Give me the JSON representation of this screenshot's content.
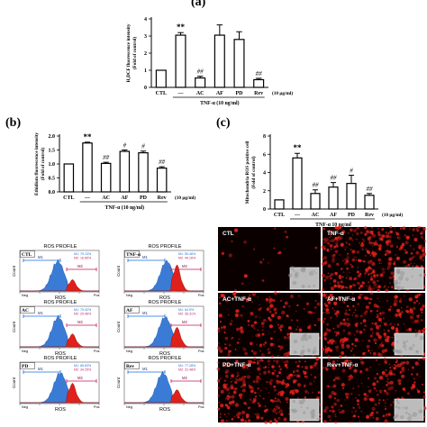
{
  "panels": {
    "a": {
      "letter": "(a)"
    },
    "b": {
      "letter": "(b)"
    },
    "c": {
      "letter": "(c)"
    }
  },
  "chart_data": [
    {
      "id": "a",
      "type": "bar",
      "categories": [
        "CTL",
        "—",
        "AC",
        "AF",
        "PD",
        "Rev"
      ],
      "values": [
        1.0,
        3.05,
        0.55,
        3.05,
        2.8,
        0.45
      ],
      "errors": [
        0.0,
        0.15,
        0.1,
        0.6,
        0.45,
        0.08
      ],
      "significance": [
        "",
        "**",
        "##",
        "",
        "",
        "##"
      ],
      "ylabel": "H2DCF fluorescence intensity (Fold of control)",
      "ylabel_line1": "H₂DCF fluorescence intensity",
      "ylabel_line2": "(Fold of control)",
      "ylim": [
        0,
        4
      ],
      "yticks": [
        "0",
        "1",
        "2",
        "3",
        "4"
      ],
      "treatment_label": "TNF-α (10 ng/ml)",
      "dose_label": "(10 μg/ml)"
    },
    {
      "id": "b",
      "type": "bar",
      "categories": [
        "CTL",
        "—",
        "AC",
        "AF",
        "PD",
        "Rev"
      ],
      "values": [
        1.0,
        1.75,
        1.02,
        1.45,
        1.4,
        0.85
      ],
      "errors": [
        0.0,
        0.03,
        0.04,
        0.05,
        0.06,
        0.05
      ],
      "significance": [
        "",
        "**",
        "##",
        "#",
        "#",
        "##"
      ],
      "ylabel": "Ethidium fluorescence intensity (Fold of control)",
      "ylabel_line1": "Ethidium fluorescence intensity",
      "ylabel_line2": "(Fold of control)",
      "ylim": [
        0.0,
        2.0
      ],
      "yticks": [
        "0.0",
        "0.5",
        "1.0",
        "1.5",
        "2.0"
      ],
      "treatment_label": "TNF-α (10 ng/ml)",
      "dose_label": "(10 μg/ml)"
    },
    {
      "id": "c",
      "type": "bar",
      "categories": [
        "CTL",
        "—",
        "AC",
        "AF",
        "PD",
        "Rev"
      ],
      "values": [
        1.0,
        5.6,
        1.7,
        2.4,
        2.8,
        1.5
      ],
      "errors": [
        0.0,
        0.5,
        0.4,
        0.5,
        0.9,
        0.2
      ],
      "significance": [
        "",
        "**",
        "##",
        "##",
        "#",
        "##"
      ],
      "ylabel": "Mitochondria ROS positive cell (Fold of control)",
      "ylabel_line1": "Mitochondria ROS positive cell",
      "ylabel_line2": "(Fold of control)",
      "ylim": [
        0,
        8
      ],
      "yticks": [
        "0",
        "2",
        "4",
        "6",
        "8"
      ],
      "treatment_label": "TNF-α 10 ng/ml",
      "dose_label": "(10 μg/ml)"
    }
  ],
  "flow": {
    "title": "ROS PROFILE",
    "xlabel": "ROS",
    "ylabel": "Count",
    "neg": "Neg",
    "pos": "Pos",
    "m1": "M1",
    "m2": "M2",
    "panels": [
      {
        "name": "CTL",
        "m1_pct": "M1: 79.13%",
        "m2_pct": "M2: 16.85%",
        "shift": 0.0,
        "red": 0.35
      },
      {
        "name": "TNF-α",
        "m1_pct": "M1: 55.46%",
        "m2_pct": "M2: 44.16%",
        "shift": 0.55,
        "red": 0.8
      },
      {
        "name": "AC",
        "m1_pct": "M1: 79.42%",
        "m2_pct": "M2: 20.46%",
        "shift": 0.05,
        "red": 0.4
      },
      {
        "name": "AF",
        "m1_pct": "M1: 64.5%",
        "m2_pct": "M2: 35.31%",
        "shift": 0.35,
        "red": 0.6
      },
      {
        "name": "PD",
        "m1_pct": "M1: 65.63%",
        "m2_pct": "M2: 34.25%",
        "shift": 0.3,
        "red": 0.6
      },
      {
        "name": "Rev",
        "m1_pct": "M1: 77.28%",
        "m2_pct": "M2: 22.48%",
        "shift": 0.08,
        "red": 0.4
      }
    ]
  },
  "fluor": {
    "panels": [
      {
        "label": "CTL",
        "intensity": 0.05
      },
      {
        "label": "TNF-α",
        "intensity": 0.95
      },
      {
        "label": "AC+TNF-α",
        "intensity": 0.45
      },
      {
        "label": "AF+TNF-α",
        "intensity": 0.7
      },
      {
        "label": "PD+TNF-α",
        "intensity": 0.75
      },
      {
        "label": "Rev+TNF-α",
        "intensity": 0.55
      }
    ]
  },
  "colors": {
    "bar_fill": "#ffffff",
    "bar_stroke": "#000000",
    "hist_blue": "#3a7bd5",
    "hist_red": "#e0201a",
    "gate_blue": "#1c6fd6",
    "gate_red": "#c2185b",
    "fluor_bg": "#0b0000",
    "fluor_cell": "#e8221b"
  }
}
